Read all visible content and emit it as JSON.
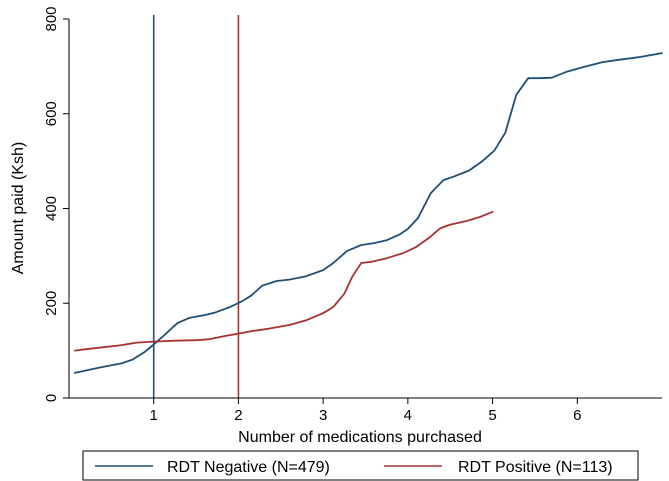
{
  "chart_data": {
    "type": "line",
    "title": "",
    "xlabel": "Number of medications purchased",
    "ylabel": "Amount paid (Ksh)",
    "xlim": [
      0,
      7
    ],
    "ylim": [
      0,
      800
    ],
    "xticks": [
      1,
      2,
      3,
      4,
      5,
      6
    ],
    "yticks": [
      0,
      200,
      400,
      600,
      800
    ],
    "grid": false,
    "legend_position": "bottom",
    "series": [
      {
        "name": "RDT Negative (N=479)",
        "color": "#1f4e79",
        "points": [
          [
            0.07,
            53
          ],
          [
            0.2,
            58
          ],
          [
            0.35,
            64
          ],
          [
            0.5,
            69
          ],
          [
            0.62,
            73
          ],
          [
            0.75,
            81
          ],
          [
            0.9,
            98
          ],
          [
            1.0,
            113
          ],
          [
            1.12,
            132
          ],
          [
            1.28,
            158
          ],
          [
            1.42,
            169
          ],
          [
            1.6,
            175
          ],
          [
            1.72,
            180
          ],
          [
            1.9,
            192
          ],
          [
            2.05,
            205
          ],
          [
            2.15,
            216
          ],
          [
            2.28,
            237
          ],
          [
            2.45,
            247
          ],
          [
            2.6,
            250
          ],
          [
            2.8,
            257
          ],
          [
            3.0,
            270
          ],
          [
            3.12,
            285
          ],
          [
            3.28,
            310
          ],
          [
            3.45,
            323
          ],
          [
            3.6,
            327
          ],
          [
            3.75,
            333
          ],
          [
            3.9,
            345
          ],
          [
            4.0,
            357
          ],
          [
            4.12,
            380
          ],
          [
            4.27,
            432
          ],
          [
            4.42,
            460
          ],
          [
            4.55,
            468
          ],
          [
            4.72,
            480
          ],
          [
            4.88,
            500
          ],
          [
            5.02,
            522
          ],
          [
            5.15,
            560
          ],
          [
            5.28,
            640
          ],
          [
            5.42,
            675
          ],
          [
            5.55,
            675
          ],
          [
            5.7,
            676
          ],
          [
            5.88,
            689
          ],
          [
            6.1,
            700
          ],
          [
            6.3,
            709
          ],
          [
            6.5,
            714
          ],
          [
            6.75,
            720
          ],
          [
            7.0,
            728
          ]
        ]
      },
      {
        "name": "RDT Positive (N=113)",
        "color": "#a83232",
        "points": [
          [
            0.07,
            100
          ],
          [
            0.25,
            104
          ],
          [
            0.45,
            108
          ],
          [
            0.6,
            111
          ],
          [
            0.8,
            117
          ],
          [
            1.0,
            119
          ],
          [
            1.25,
            121
          ],
          [
            1.5,
            122
          ],
          [
            1.65,
            124
          ],
          [
            1.85,
            131
          ],
          [
            2.0,
            136
          ],
          [
            2.15,
            141
          ],
          [
            2.35,
            146
          ],
          [
            2.6,
            154
          ],
          [
            2.8,
            164
          ],
          [
            3.0,
            179
          ],
          [
            3.12,
            192
          ],
          [
            3.25,
            220
          ],
          [
            3.35,
            258
          ],
          [
            3.45,
            285
          ],
          [
            3.58,
            288
          ],
          [
            3.75,
            295
          ],
          [
            3.95,
            306
          ],
          [
            4.1,
            319
          ],
          [
            4.25,
            338
          ],
          [
            4.38,
            358
          ],
          [
            4.5,
            366
          ],
          [
            4.68,
            373
          ],
          [
            4.85,
            382
          ],
          [
            5.0,
            393
          ]
        ]
      }
    ],
    "reference_lines": [
      {
        "axis": "x",
        "value": 1,
        "color": "#1f4e79"
      },
      {
        "axis": "x",
        "value": 2,
        "color": "#a83232"
      }
    ]
  }
}
